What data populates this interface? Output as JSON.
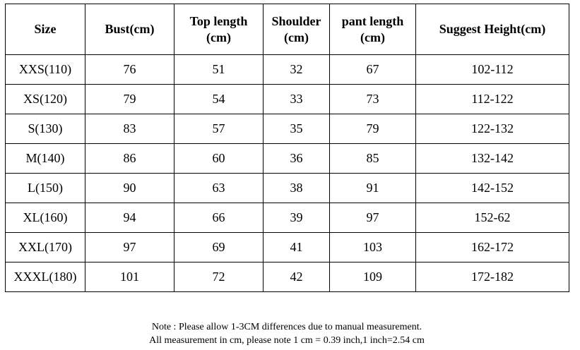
{
  "table": {
    "header": [
      "Size",
      "Bust(cm)",
      "Top length\n(cm)",
      "Shoulder\n(cm)",
      "pant length\n(cm)",
      "Suggest Height(cm)"
    ],
    "rows": [
      [
        "XXS(110)",
        76,
        51,
        32,
        67,
        "102-112"
      ],
      [
        "XS(120)",
        79,
        54,
        33,
        73,
        "112-122"
      ],
      [
        "S(130)",
        83,
        57,
        35,
        79,
        "122-132"
      ],
      [
        "M(140)",
        86,
        60,
        36,
        85,
        "132-142"
      ],
      [
        "L(150)",
        90,
        63,
        38,
        91,
        "142-152"
      ],
      [
        "XL(160)",
        94,
        66,
        39,
        97,
        "152-62"
      ],
      [
        "XXL(170)",
        97,
        69,
        41,
        103,
        "162-172"
      ],
      [
        "XXXL(180)",
        101,
        72,
        42,
        109,
        "172-182"
      ]
    ]
  },
  "notes": [
    "Note :  Please allow 1-3CM differences due to manual measurement.",
    "All measurement in cm, please note 1 cm = 0.39 inch,1 inch=2.54 cm"
  ]
}
